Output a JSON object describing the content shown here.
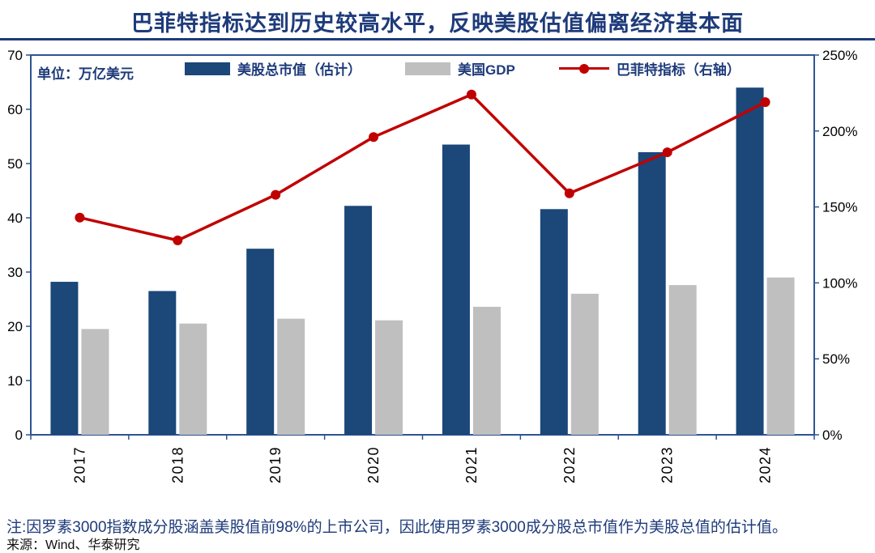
{
  "title": "巴菲特指标达到历史较高水平，反映美股估值偏离经济基本面",
  "unit_label": "单位：万亿美元",
  "note": "注:因罗素3000指数成分股涵盖美股值前98%的上市公司，因此使用罗素3000成分股总市值作为美股总值的估计值。",
  "source": "来源：Wind、华泰研究",
  "colors": {
    "bar_navy": "#1B4779",
    "bar_gray": "#BFBFBF",
    "line_red": "#C00000",
    "text_navy": "#1E3B7A",
    "axis_blue": "#2E5494",
    "tick_text": "#000000"
  },
  "chart_data": {
    "type": "bar+line",
    "categories": [
      "2017",
      "2018",
      "2019",
      "2020",
      "2021",
      "2022",
      "2023",
      "2024"
    ],
    "series": [
      {
        "name": "美股总市值（估计）",
        "type": "bar",
        "axis": "left",
        "color": "#1B4779",
        "values": [
          28.2,
          26.5,
          34.3,
          42.2,
          53.5,
          41.6,
          52.1,
          64.0
        ]
      },
      {
        "name": "美国GDP",
        "type": "bar",
        "axis": "left",
        "color": "#BFBFBF",
        "values": [
          19.5,
          20.5,
          21.4,
          21.1,
          23.6,
          26.0,
          27.6,
          29.0
        ]
      },
      {
        "name": "巴菲特指标（右轴）",
        "type": "line",
        "axis": "right",
        "color": "#C00000",
        "values": [
          143,
          128,
          158,
          196,
          224,
          159,
          186,
          219
        ]
      }
    ],
    "left_axis": {
      "min": 0,
      "max": 70,
      "step": 10,
      "tick_labels": [
        "0",
        "10",
        "20",
        "30",
        "40",
        "50",
        "60",
        "70"
      ]
    },
    "right_axis": {
      "min": 0,
      "max": 250,
      "step": 50,
      "tick_labels": [
        "0%",
        "50%",
        "100%",
        "150%",
        "200%",
        "250%"
      ]
    },
    "legend_position": "top",
    "grid": false
  }
}
